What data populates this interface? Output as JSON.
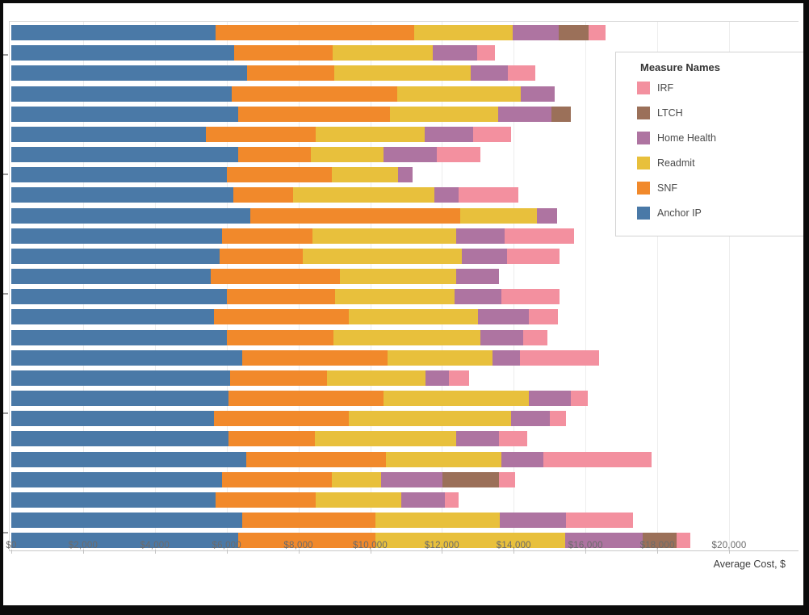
{
  "chart_data": {
    "type": "bar",
    "orientation": "horizontal",
    "stacked": true,
    "title": "",
    "xlabel": "Average Cost, $",
    "ylabel": "",
    "x_tick_values": [
      0,
      2000,
      4000,
      6000,
      8000,
      10000,
      12000,
      14000,
      16000,
      18000,
      20000
    ],
    "x_tick_labels": [
      "$0",
      "$2,000",
      "$4,000",
      "$6,000",
      "$8,000",
      "$10,000",
      "$12,000",
      "$14,000",
      "$16,000",
      "$18,000",
      "$20,000"
    ],
    "xlim": [
      0,
      21950
    ],
    "grid": "vertical-only",
    "legend_position": "floating-top-right",
    "legend_title": "Measure Names",
    "legend": [
      {
        "label": "IRF",
        "color": "#F3909F"
      },
      {
        "label": "LTCH",
        "color": "#9B7059"
      },
      {
        "label": "Home Health",
        "color": "#AE74A1"
      },
      {
        "label": "Readmit",
        "color": "#E8C03C"
      },
      {
        "label": "SNF",
        "color": "#F1892B"
      },
      {
        "label": "Anchor IP",
        "color": "#4A79A7"
      }
    ],
    "stack_order": [
      "Anchor IP",
      "SNF",
      "Readmit",
      "Home Health",
      "LTCH",
      "IRF"
    ],
    "series_colors": {
      "Anchor IP": "#4A79A7",
      "SNF": "#F1892B",
      "Readmit": "#E8C03C",
      "Home Health": "#AE74A1",
      "LTCH": "#9B7059",
      "IRF": "#F3909F"
    },
    "bar_category_labels_visible": false,
    "bars": [
      {
        "values": [
          5700,
          5525,
          2750,
          1275,
          825,
          475
        ]
      },
      {
        "values": [
          6200,
          2750,
          2800,
          1225,
          0,
          500
        ]
      },
      {
        "values": [
          6575,
          2425,
          3800,
          1025,
          0,
          775
        ]
      },
      {
        "values": [
          6150,
          4600,
          3450,
          950,
          0,
          0
        ]
      },
      {
        "values": [
          6325,
          4225,
          3025,
          1475,
          550,
          0
        ]
      },
      {
        "values": [
          5425,
          3050,
          3050,
          1350,
          0,
          1050
        ]
      },
      {
        "values": [
          6325,
          2025,
          2025,
          1475,
          0,
          1225
        ]
      },
      {
        "values": [
          6000,
          2925,
          1850,
          400,
          0,
          0
        ]
      },
      {
        "values": [
          6175,
          1675,
          3925,
          675,
          0,
          1675
        ]
      },
      {
        "values": [
          6650,
          5850,
          2150,
          550,
          0,
          0
        ]
      },
      {
        "values": [
          5875,
          2525,
          4000,
          1350,
          0,
          1925
        ]
      },
      {
        "values": [
          5800,
          2325,
          4425,
          1275,
          0,
          1450
        ]
      },
      {
        "values": [
          5550,
          3600,
          3250,
          1200,
          0,
          0
        ]
      },
      {
        "values": [
          6000,
          3025,
          3325,
          1300,
          0,
          1625
        ]
      },
      {
        "values": [
          5650,
          3750,
          3600,
          1425,
          0,
          800
        ]
      },
      {
        "values": [
          6000,
          2975,
          4100,
          1200,
          0,
          675
        ]
      },
      {
        "values": [
          6425,
          4050,
          2925,
          775,
          0,
          2200
        ]
      },
      {
        "values": [
          6100,
          2700,
          2750,
          650,
          0,
          550
        ]
      },
      {
        "values": [
          6050,
          4325,
          4050,
          1175,
          0,
          475
        ]
      },
      {
        "values": [
          5650,
          3750,
          4525,
          1075,
          0,
          450
        ]
      },
      {
        "values": [
          6050,
          2400,
          3950,
          1200,
          0,
          775
        ]
      },
      {
        "values": [
          6550,
          3900,
          3200,
          1175,
          0,
          3025
        ]
      },
      {
        "values": [
          5875,
          3050,
          1375,
          1725,
          1575,
          450
        ]
      },
      {
        "values": [
          5700,
          2775,
          2400,
          1200,
          0,
          400
        ]
      },
      {
        "values": [
          6425,
          3725,
          3450,
          1850,
          0,
          1875
        ]
      },
      {
        "values": [
          6325,
          3825,
          5275,
          2175,
          950,
          375
        ]
      }
    ]
  }
}
